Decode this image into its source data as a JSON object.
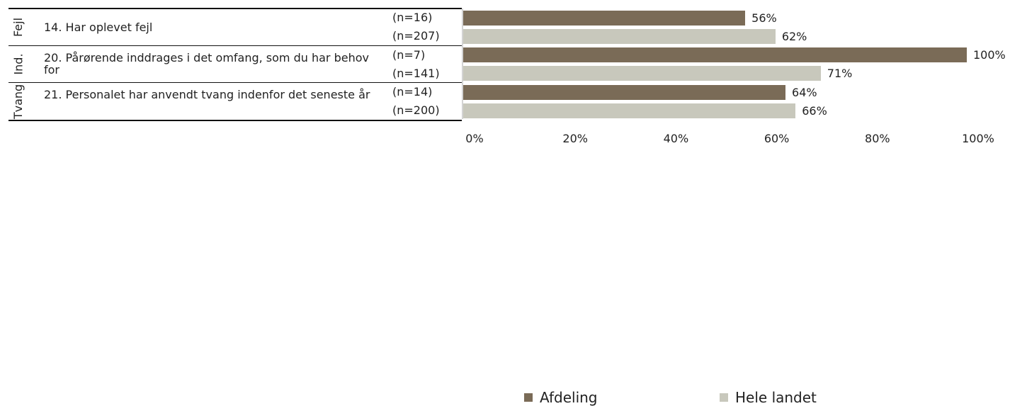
{
  "chart_data": {
    "type": "bar",
    "orientation": "horizontal",
    "xlim": [
      0,
      100
    ],
    "ticks": [
      "0%",
      "20%",
      "40%",
      "60%",
      "80%",
      "100%"
    ],
    "legend_position": "bottom",
    "series": [
      {
        "name": "Afdeling",
        "color": "#7a6b57"
      },
      {
        "name": "Hele landet",
        "color": "#c8c8bc"
      }
    ],
    "groups": [
      {
        "category": "Fejl",
        "question": "14. Har oplevet fejl",
        "rows": [
          {
            "n": "(n=16)",
            "value": 56,
            "label": "56%"
          },
          {
            "n": "(n=207)",
            "value": 62,
            "label": "62%"
          }
        ]
      },
      {
        "category": "Ind.",
        "question": "20. Pårørende inddrages i det omfang, som du har behov for",
        "rows": [
          {
            "n": "(n=7)",
            "value": 100,
            "label": "100%"
          },
          {
            "n": "(n=141)",
            "value": 71,
            "label": "71%"
          }
        ]
      },
      {
        "category": "Tvang",
        "question": "21. Personalet har anvendt tvang indenfor det seneste år",
        "rows": [
          {
            "n": "(n=14)",
            "value": 64,
            "label": "64%"
          },
          {
            "n": "(n=200)",
            "value": 66,
            "label": "66%"
          }
        ]
      }
    ]
  }
}
